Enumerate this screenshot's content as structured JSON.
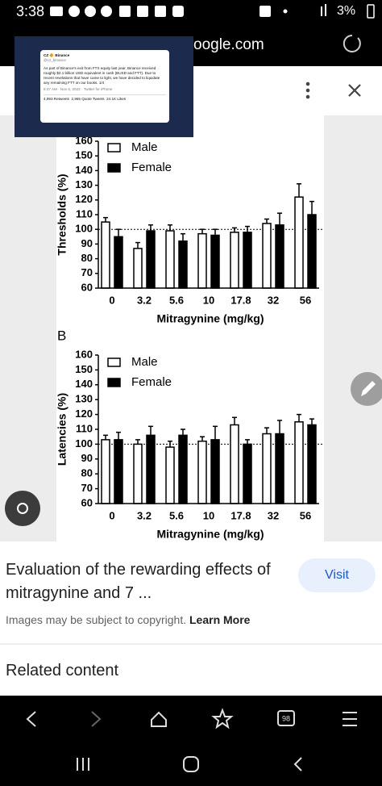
{
  "status_bar": {
    "time": "3:38",
    "battery": "3%"
  },
  "browser": {
    "url": "oogle.com",
    "tab_count": "98"
  },
  "thumbnail": {
    "author": "CZ 🔶 Binance",
    "handle": "@cz_binance",
    "text": "As part of Binance's exit from FTX equity last year, Binance received roughly $2.1 billion USD equivalent in cash (BUSD and FTT). Due to recent revelations that have came to light, we have decided to liquidate any remaining FTT on our books. 1/4",
    "meta": "8:47 AM · Nov 6, 2022 · Twitter for iPhone",
    "stats": [
      "4,993 Retweets",
      "2,965 Quote Tweets",
      "24.1K Likes"
    ]
  },
  "chart_data": [
    {
      "type": "bar",
      "y_label": "Thresholds (%)",
      "x_label": "Mitragynine (mg/kg)",
      "categories": [
        "0",
        "3.2",
        "5.6",
        "10",
        "17.8",
        "32",
        "56"
      ],
      "series": [
        {
          "name": "Male",
          "color": "#ffffff",
          "values": [
            105,
            87,
            99,
            97,
            98,
            104,
            122
          ],
          "errors": [
            3,
            4,
            4,
            3,
            3,
            3,
            9
          ]
        },
        {
          "name": "Female",
          "color": "#000000",
          "values": [
            95,
            99,
            92,
            96,
            98,
            103,
            110
          ],
          "errors": [
            5,
            4,
            5,
            4,
            4,
            8,
            9
          ]
        }
      ],
      "ylim": [
        60,
        160
      ],
      "yticks": [
        60,
        70,
        80,
        90,
        100,
        110,
        120,
        130,
        140,
        150,
        160
      ],
      "reference_line": 100
    },
    {
      "type": "bar",
      "panel_label": "B",
      "y_label": "Latencies (%)",
      "x_label": "Mitragynine (mg/kg)",
      "categories": [
        "0",
        "3.2",
        "5.6",
        "10",
        "17.8",
        "32",
        "56"
      ],
      "series": [
        {
          "name": "Male",
          "color": "#ffffff",
          "values": [
            103,
            100,
            98,
            102,
            113,
            107,
            115
          ],
          "errors": [
            3,
            3,
            4,
            3,
            5,
            4,
            5
          ]
        },
        {
          "name": "Female",
          "color": "#000000",
          "values": [
            103,
            106,
            106,
            103,
            100,
            107,
            113
          ],
          "errors": [
            5,
            6,
            4,
            9,
            3,
            9,
            4
          ]
        }
      ],
      "ylim": [
        60,
        160
      ],
      "yticks": [
        60,
        70,
        80,
        90,
        100,
        110,
        120,
        130,
        140,
        150,
        160
      ],
      "reference_line": 100
    }
  ],
  "result": {
    "title": "Evaluation of the rewarding effects of mitragynine and 7 ...",
    "button": "Visit",
    "notice": "Images may be subject to copyright.",
    "link": "Learn More"
  },
  "related": "Related content"
}
